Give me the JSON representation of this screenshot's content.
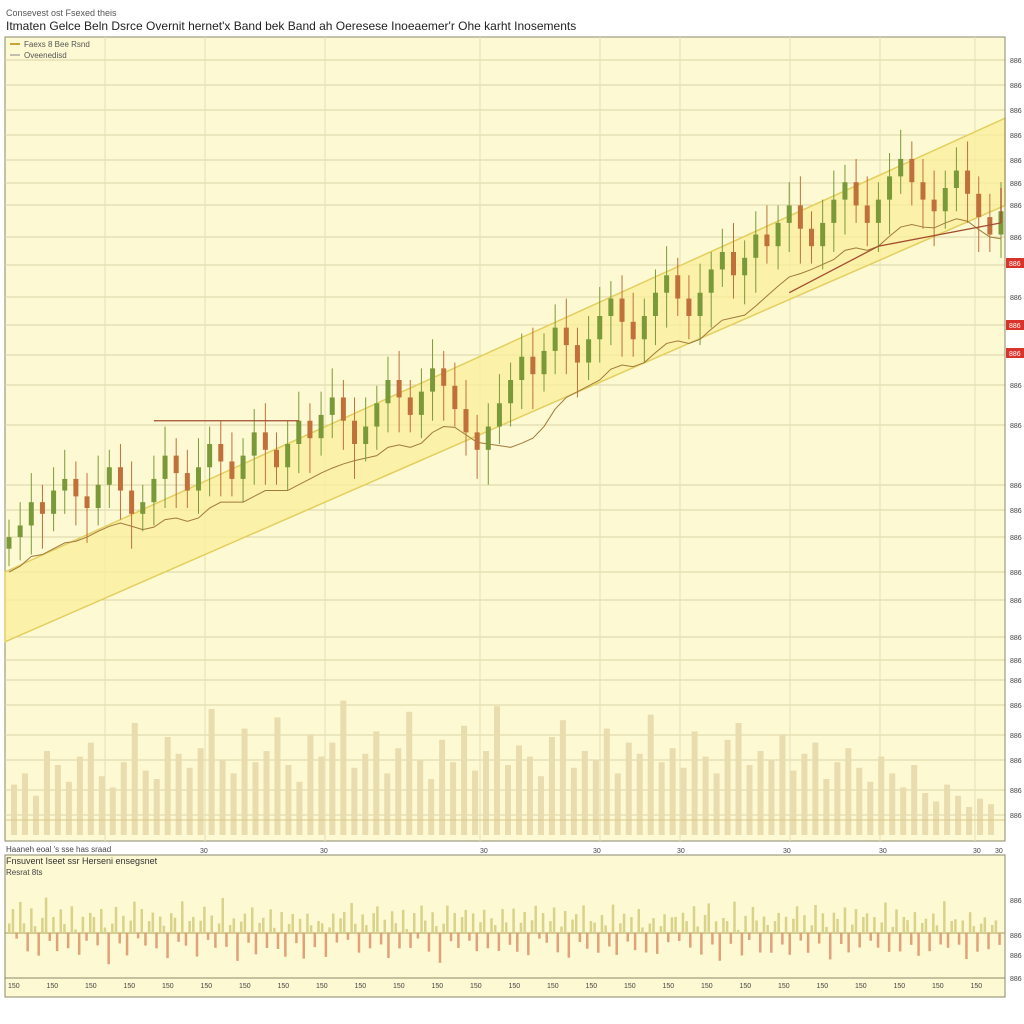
{
  "header": {
    "subtitle": "Consevest ost Fsexed theis",
    "title": "Itmaten Gelce Beln Dsrce Overnit hernet'x Band bek Band ah Oeresese Inoeaemer'r Ohe karht Inosements"
  },
  "legend": {
    "entry_1": "Faexs 8 Bee Rsnd",
    "entry_2": "Oveenedisd"
  },
  "subpanel": {
    "title": "Fnsuvent Iseet ssr Herseni ensegsnet",
    "subtitle": "Resrat 8ts",
    "pane1_label": "Haaneh eoal 's sse has sraad"
  },
  "colors": {
    "background": "#fdf9d2",
    "band_fill": "#f9ee9a",
    "band_edge": "#e3cf60",
    "up_candle": "#7a9a3a",
    "down_candle": "#c0703a",
    "trend_line": "#a44d30",
    "volume": "#e9dcae",
    "price_badge": "#d9342b"
  },
  "chart_data": {
    "type": "candlestick",
    "y_tick_label": "886",
    "x_tick_label": "30",
    "lower_x_tick_label": "150",
    "price_badges": [
      "886",
      "886",
      "886"
    ],
    "series": [
      {
        "kind": "price",
        "values": [
          58,
          60,
          64,
          62,
          66,
          68,
          65,
          63,
          67,
          70,
          66,
          62,
          64,
          68,
          72,
          69,
          66,
          70,
          74,
          71,
          68,
          72,
          76,
          73,
          70,
          74,
          78,
          75,
          79,
          82,
          78,
          74,
          77,
          81,
          85,
          82,
          79,
          83,
          87,
          84,
          80,
          76,
          73,
          77,
          81,
          85,
          89,
          86,
          90,
          94,
          91,
          88,
          92,
          96,
          99,
          95,
          92,
          96,
          100,
          103,
          99,
          96,
          100,
          104,
          107,
          103,
          106,
          110,
          108,
          112,
          115,
          111,
          108,
          112,
          116,
          119,
          115,
          112,
          116,
          120,
          123,
          119,
          116,
          114,
          118,
          121,
          117,
          113,
          110,
          114
        ]
      },
      {
        "kind": "channel_lower_start",
        "values": [
          40
        ]
      },
      {
        "kind": "channel_lower_end",
        "values": [
          115
        ]
      },
      {
        "kind": "channel_upper_start",
        "values": [
          52
        ]
      },
      {
        "kind": "channel_upper_end",
        "values": [
          130
        ]
      }
    ],
    "volume": [
      18,
      22,
      14,
      30,
      25,
      19,
      28,
      33,
      21,
      17,
      26,
      40,
      23,
      20,
      35,
      29,
      24,
      31,
      45,
      27,
      22,
      38,
      26,
      30,
      42,
      25,
      19,
      36,
      28,
      33,
      48,
      24,
      29,
      37,
      22,
      31,
      44,
      27,
      20,
      34,
      26,
      39,
      23,
      30,
      46,
      25,
      32,
      28,
      21,
      35,
      41,
      24,
      30,
      27,
      38,
      22,
      33,
      29,
      43,
      26,
      31,
      24,
      37,
      28,
      22,
      34,
      40,
      25,
      30,
      27,
      36,
      23,
      29,
      33,
      20,
      26,
      31,
      24,
      19,
      28,
      22,
      17,
      25,
      15,
      12,
      18,
      14,
      10,
      13,
      11
    ],
    "oscillator": [
      0.4,
      0.6,
      -0.2,
      0.8,
      0.3,
      -0.5,
      0.7,
      0.2,
      -0.6,
      0.5,
      0.9,
      -0.3,
      0.4,
      -0.7,
      0.6,
      0.3,
      -0.4,
      0.8,
      0.1,
      -0.6,
      0.5,
      -0.2,
      0.7,
      0.4,
      -0.5,
      0.6,
      0.2,
      -0.8,
      0.3,
      0.7,
      -0.3,
      0.5,
      -0.6,
      0.4,
      0.8,
      -0.2,
      0.6,
      -0.5,
      0.3,
      0.7,
      -0.4,
      0.5,
      0.2,
      -0.7,
      0.6,
      0.4,
      -0.3,
      0.8,
      -0.5,
      0.3,
      0.6,
      -0.6,
      0.4,
      0.7,
      -0.2,
      0.5,
      -0.4,
      0.3,
      0.9,
      -0.5,
      0.2,
      0.6,
      -0.7,
      0.4,
      0.5,
      -0.3,
      0.7,
      -0.6,
      0.3,
      0.4,
      -0.5,
      0.6,
      0.2,
      -0.4,
      0.8,
      -0.6,
      0.3,
      0.5,
      -0.3,
      0.4,
      -0.7,
      0.6,
      0.2,
      -0.5,
      0.3,
      0.4,
      -0.6,
      0.2,
      0.5,
      -0.3
    ]
  }
}
